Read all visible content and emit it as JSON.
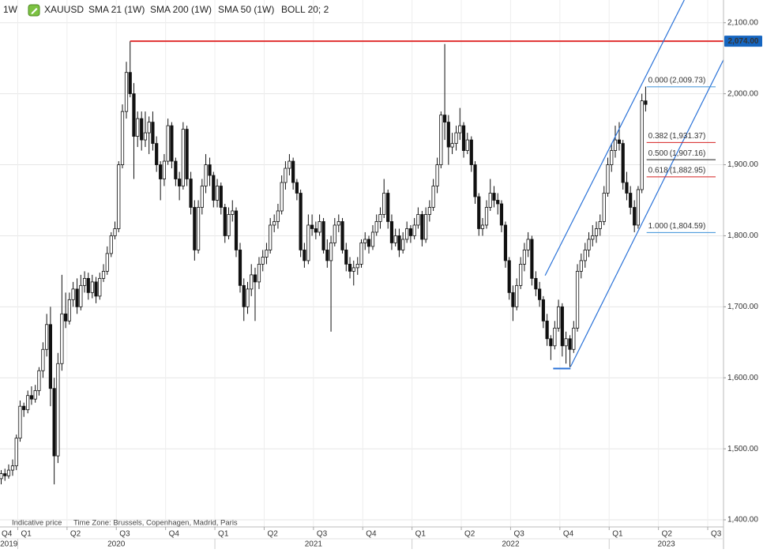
{
  "chart_data": {
    "type": "candlestick",
    "timeframe": "1W",
    "symbol": "XAUUSD",
    "indicators": [
      "SMA 21 (1W)",
      "SMA 200 (1W)",
      "SMA 50 (1W)",
      "BOLL 20; 2"
    ],
    "footer": [
      "Indicative price",
      "Time Zone: Brussels, Copenhagen, Madrid, Paris"
    ],
    "up_color": "#ffffff",
    "down_color": "#111111",
    "grid": true,
    "xlim": [
      2019.91,
      2023.58
    ],
    "ylim": [
      1390,
      2132
    ],
    "yticks": [
      {
        "value": 1400,
        "label": "1,400.00"
      },
      {
        "value": 1500,
        "label": "1,500.00"
      },
      {
        "value": 1600,
        "label": "1,600.00"
      },
      {
        "value": 1700,
        "label": "1,700.00"
      },
      {
        "value": 1800,
        "label": "1,800.00"
      },
      {
        "value": 1900,
        "label": "1,900.00"
      },
      {
        "value": 2000,
        "label": "2,000.00"
      },
      {
        "value": 2100,
        "label": "2,100.00"
      }
    ],
    "xticks": [
      {
        "value": 2019.75,
        "label": "Q4"
      },
      {
        "value": 2020,
        "label": "Q1"
      },
      {
        "value": 2020.25,
        "label": "Q2"
      },
      {
        "value": 2020.5,
        "label": "Q3"
      },
      {
        "value": 2020.75,
        "label": "Q4"
      },
      {
        "value": 2021,
        "label": "Q1"
      },
      {
        "value": 2021.25,
        "label": "Q2"
      },
      {
        "value": 2021.5,
        "label": "Q3"
      },
      {
        "value": 2021.75,
        "label": "Q4"
      },
      {
        "value": 2022,
        "label": "Q1"
      },
      {
        "value": 2022.25,
        "label": "Q2"
      },
      {
        "value": 2022.5,
        "label": "Q3"
      },
      {
        "value": 2022.75,
        "label": "Q4"
      },
      {
        "value": 2023,
        "label": "Q1"
      },
      {
        "value": 2023.25,
        "label": "Q2"
      },
      {
        "value": 2023.5,
        "label": "Q3"
      }
    ],
    "year_ticks": [
      {
        "value": 2019,
        "label": "2019"
      },
      {
        "value": 2020,
        "label": "2020"
      },
      {
        "value": 2021,
        "label": "2021"
      },
      {
        "value": 2022,
        "label": "2022"
      },
      {
        "value": 2023,
        "label": "2023"
      }
    ],
    "resistance": {
      "value": 2074,
      "label": "2,074.00",
      "x_start": 2020.57,
      "color": "#e03030",
      "label_color": "#1565c0"
    },
    "fib_x": [
      2023.19,
      2023.54
    ],
    "fib_levels": [
      {
        "ratio": "0.000",
        "value": 2009.73,
        "label": "(2,009.73)",
        "color": "#3a8fd8"
      },
      {
        "ratio": "0.382",
        "value": 1931.37,
        "label": "(1,931.37)",
        "color": "#d42020"
      },
      {
        "ratio": "0.500",
        "value": 1907.16,
        "label": "(1,907.16)",
        "color": "#222222"
      },
      {
        "ratio": "0.618",
        "value": 1882.95,
        "label": "(1,882.95)",
        "color": "#d42020"
      },
      {
        "ratio": "1.000",
        "value": 1804.59,
        "label": "(1,804.59)",
        "color": "#3a8fd8"
      }
    ],
    "trendlines": [
      {
        "x": [
          2022.675,
          2023.381
        ],
        "y": [
          1744,
          2132
        ],
        "color": "#2a72d8"
      },
      {
        "x": [
          2022.804,
          2023.582
        ],
        "y": [
          1615.5,
          2049
        ],
        "color": "#2a72d8"
      },
      {
        "x": [
          2022.716,
          2022.804
        ],
        "y": [
          1613,
          1613
        ],
        "color": "#2a72d8"
      }
    ],
    "x": [
      2019.916,
      2019.935,
      2019.954,
      2019.974,
      2019.993,
      2020.012,
      2020.031,
      2020.051,
      2020.07,
      2020.089,
      2020.108,
      2020.128,
      2020.147,
      2020.166,
      2020.185,
      2020.204,
      2020.224,
      2020.243,
      2020.262,
      2020.281,
      2020.301,
      2020.32,
      2020.339,
      2020.358,
      2020.378,
      2020.397,
      2020.416,
      2020.435,
      2020.454,
      2020.474,
      2020.493,
      2020.512,
      2020.531,
      2020.551,
      2020.57,
      2020.589,
      2020.608,
      2020.628,
      2020.647,
      2020.666,
      2020.685,
      2020.704,
      2020.724,
      2020.743,
      2020.762,
      2020.781,
      2020.801,
      2020.82,
      2020.839,
      2020.858,
      2020.878,
      2020.897,
      2020.916,
      2020.935,
      2020.954,
      2020.974,
      2020.993,
      2021.012,
      2021.031,
      2021.051,
      2021.07,
      2021.089,
      2021.108,
      2021.128,
      2021.147,
      2021.166,
      2021.185,
      2021.204,
      2021.224,
      2021.243,
      2021.262,
      2021.281,
      2021.301,
      2021.32,
      2021.339,
      2021.358,
      2021.378,
      2021.397,
      2021.416,
      2021.435,
      2021.454,
      2021.474,
      2021.493,
      2021.512,
      2021.531,
      2021.551,
      2021.57,
      2021.589,
      2021.608,
      2021.628,
      2021.647,
      2021.666,
      2021.685,
      2021.704,
      2021.724,
      2021.743,
      2021.762,
      2021.781,
      2021.801,
      2021.82,
      2021.839,
      2021.858,
      2021.878,
      2021.897,
      2021.916,
      2021.935,
      2021.954,
      2021.974,
      2021.993,
      2022.012,
      2022.031,
      2022.051,
      2022.07,
      2022.089,
      2022.108,
      2022.128,
      2022.147,
      2022.166,
      2022.185,
      2022.204,
      2022.224,
      2022.243,
      2022.262,
      2022.281,
      2022.301,
      2022.32,
      2022.339,
      2022.358,
      2022.378,
      2022.397,
      2022.416,
      2022.435,
      2022.454,
      2022.474,
      2022.493,
      2022.512,
      2022.531,
      2022.551,
      2022.57,
      2022.589,
      2022.608,
      2022.628,
      2022.647,
      2022.666,
      2022.685,
      2022.704,
      2022.724,
      2022.743,
      2022.762,
      2022.781,
      2022.801,
      2022.82,
      2022.839,
      2022.858,
      2022.878,
      2022.897,
      2022.916,
      2022.935,
      2022.954,
      2022.974,
      2022.993,
      2023.012,
      2023.031,
      2023.051,
      2023.07,
      2023.089,
      2023.108,
      2023.128,
      2023.147,
      2023.166,
      2023.185
    ],
    "ohlc": [
      [
        1458,
        1470,
        1450,
        1465
      ],
      [
        1465,
        1472,
        1455,
        1462
      ],
      [
        1462,
        1478,
        1458,
        1470
      ],
      [
        1470,
        1485,
        1462,
        1476
      ],
      [
        1476,
        1520,
        1470,
        1515
      ],
      [
        1515,
        1568,
        1510,
        1560
      ],
      [
        1560,
        1565,
        1545,
        1555
      ],
      [
        1555,
        1582,
        1550,
        1575
      ],
      [
        1575,
        1588,
        1562,
        1570
      ],
      [
        1570,
        1590,
        1565,
        1582
      ],
      [
        1582,
        1615,
        1575,
        1610
      ],
      [
        1610,
        1650,
        1600,
        1640
      ],
      [
        1640,
        1690,
        1630,
        1675
      ],
      [
        1675,
        1700,
        1560,
        1585
      ],
      [
        1585,
        1600,
        1450,
        1490
      ],
      [
        1490,
        1635,
        1480,
        1620
      ],
      [
        1620,
        1745,
        1610,
        1690
      ],
      [
        1690,
        1720,
        1670,
        1680
      ],
      [
        1680,
        1720,
        1675,
        1710
      ],
      [
        1710,
        1735,
        1700,
        1725
      ],
      [
        1725,
        1740,
        1690,
        1700
      ],
      [
        1700,
        1745,
        1695,
        1730
      ],
      [
        1730,
        1750,
        1720,
        1740
      ],
      [
        1740,
        1748,
        1710,
        1720
      ],
      [
        1720,
        1745,
        1712,
        1735
      ],
      [
        1735,
        1742,
        1705,
        1715
      ],
      [
        1715,
        1748,
        1710,
        1740
      ],
      [
        1740,
        1760,
        1735,
        1750
      ],
      [
        1750,
        1785,
        1745,
        1775
      ],
      [
        1775,
        1805,
        1770,
        1800
      ],
      [
        1800,
        1820,
        1795,
        1810
      ],
      [
        1810,
        1905,
        1805,
        1900
      ],
      [
        1900,
        1985,
        1895,
        1975
      ],
      [
        1975,
        2045,
        1965,
        2030
      ],
      [
        2030,
        2074,
        1995,
        2000
      ],
      [
        2000,
        2015,
        1880,
        1940
      ],
      [
        1940,
        1975,
        1925,
        1965
      ],
      [
        1965,
        1975,
        1920,
        1935
      ],
      [
        1935,
        1975,
        1925,
        1945
      ],
      [
        1945,
        1968,
        1915,
        1960
      ],
      [
        1960,
        1975,
        1920,
        1930
      ],
      [
        1930,
        1940,
        1890,
        1900
      ],
      [
        1900,
        1905,
        1850,
        1880
      ],
      [
        1880,
        1915,
        1870,
        1905
      ],
      [
        1905,
        1965,
        1900,
        1955
      ],
      [
        1955,
        1960,
        1895,
        1905
      ],
      [
        1905,
        1910,
        1870,
        1880
      ],
      [
        1880,
        1890,
        1850,
        1870
      ],
      [
        1870,
        1960,
        1865,
        1950
      ],
      [
        1950,
        1955,
        1870,
        1880
      ],
      [
        1880,
        1890,
        1830,
        1840
      ],
      [
        1840,
        1850,
        1765,
        1780
      ],
      [
        1780,
        1850,
        1775,
        1840
      ],
      [
        1840,
        1880,
        1830,
        1870
      ],
      [
        1870,
        1915,
        1860,
        1900
      ],
      [
        1900,
        1910,
        1870,
        1885
      ],
      [
        1885,
        1890,
        1840,
        1850
      ],
      [
        1850,
        1880,
        1840,
        1870
      ],
      [
        1870,
        1875,
        1830,
        1840
      ],
      [
        1840,
        1845,
        1790,
        1800
      ],
      [
        1800,
        1840,
        1795,
        1830
      ],
      [
        1830,
        1850,
        1820,
        1835
      ],
      [
        1835,
        1840,
        1770,
        1780
      ],
      [
        1780,
        1790,
        1720,
        1730
      ],
      [
        1730,
        1740,
        1680,
        1700
      ],
      [
        1700,
        1735,
        1690,
        1725
      ],
      [
        1725,
        1760,
        1715,
        1745
      ],
      [
        1745,
        1755,
        1680,
        1735
      ],
      [
        1735,
        1770,
        1725,
        1760
      ],
      [
        1760,
        1780,
        1750,
        1770
      ],
      [
        1770,
        1790,
        1760,
        1780
      ],
      [
        1780,
        1825,
        1775,
        1815
      ],
      [
        1815,
        1830,
        1805,
        1820
      ],
      [
        1820,
        1845,
        1810,
        1835
      ],
      [
        1835,
        1885,
        1830,
        1875
      ],
      [
        1875,
        1905,
        1865,
        1895
      ],
      [
        1895,
        1915,
        1885,
        1905
      ],
      [
        1905,
        1910,
        1865,
        1875
      ],
      [
        1875,
        1880,
        1850,
        1860
      ],
      [
        1860,
        1865,
        1770,
        1780
      ],
      [
        1780,
        1790,
        1755,
        1765
      ],
      [
        1765,
        1830,
        1760,
        1815
      ],
      [
        1815,
        1830,
        1800,
        1810
      ],
      [
        1810,
        1820,
        1795,
        1805
      ],
      [
        1805,
        1830,
        1800,
        1820
      ],
      [
        1820,
        1825,
        1775,
        1780
      ],
      [
        1780,
        1795,
        1755,
        1765
      ],
      [
        1765,
        1800,
        1665,
        1790
      ],
      [
        1790,
        1825,
        1785,
        1815
      ],
      [
        1815,
        1830,
        1805,
        1820
      ],
      [
        1820,
        1825,
        1775,
        1780
      ],
      [
        1780,
        1790,
        1750,
        1760
      ],
      [
        1760,
        1770,
        1740,
        1750
      ],
      [
        1750,
        1765,
        1730,
        1755
      ],
      [
        1755,
        1770,
        1745,
        1760
      ],
      [
        1760,
        1795,
        1755,
        1790
      ],
      [
        1790,
        1805,
        1780,
        1795
      ],
      [
        1795,
        1800,
        1775,
        1785
      ],
      [
        1785,
        1815,
        1780,
        1805
      ],
      [
        1805,
        1830,
        1800,
        1820
      ],
      [
        1820,
        1840,
        1810,
        1830
      ],
      [
        1830,
        1880,
        1825,
        1860
      ],
      [
        1860,
        1865,
        1810,
        1820
      ],
      [
        1820,
        1830,
        1780,
        1790
      ],
      [
        1790,
        1810,
        1785,
        1800
      ],
      [
        1800,
        1810,
        1770,
        1780
      ],
      [
        1780,
        1805,
        1775,
        1795
      ],
      [
        1795,
        1820,
        1790,
        1810
      ],
      [
        1810,
        1815,
        1790,
        1800
      ],
      [
        1800,
        1825,
        1795,
        1815
      ],
      [
        1815,
        1840,
        1810,
        1830
      ],
      [
        1830,
        1835,
        1785,
        1795
      ],
      [
        1795,
        1840,
        1790,
        1830
      ],
      [
        1830,
        1850,
        1820,
        1840
      ],
      [
        1840,
        1880,
        1835,
        1870
      ],
      [
        1870,
        1910,
        1860,
        1900
      ],
      [
        1900,
        1975,
        1895,
        1970
      ],
      [
        1970,
        2070,
        1935,
        1960
      ],
      [
        1960,
        1970,
        1900,
        1925
      ],
      [
        1925,
        1945,
        1915,
        1930
      ],
      [
        1930,
        1955,
        1920,
        1945
      ],
      [
        1945,
        1980,
        1935,
        1955
      ],
      [
        1955,
        1960,
        1910,
        1920
      ],
      [
        1920,
        1945,
        1915,
        1935
      ],
      [
        1935,
        1940,
        1890,
        1900
      ],
      [
        1900,
        1905,
        1845,
        1855
      ],
      [
        1855,
        1860,
        1800,
        1810
      ],
      [
        1810,
        1825,
        1800,
        1815
      ],
      [
        1815,
        1850,
        1810,
        1840
      ],
      [
        1840,
        1880,
        1835,
        1860
      ],
      [
        1860,
        1870,
        1840,
        1850
      ],
      [
        1850,
        1860,
        1830,
        1845
      ],
      [
        1845,
        1850,
        1805,
        1815
      ],
      [
        1815,
        1820,
        1755,
        1765
      ],
      [
        1765,
        1770,
        1710,
        1720
      ],
      [
        1720,
        1730,
        1680,
        1700
      ],
      [
        1700,
        1740,
        1695,
        1730
      ],
      [
        1730,
        1770,
        1725,
        1760
      ],
      [
        1760,
        1790,
        1750,
        1780
      ],
      [
        1780,
        1805,
        1770,
        1795
      ],
      [
        1795,
        1800,
        1730,
        1740
      ],
      [
        1740,
        1750,
        1715,
        1725
      ],
      [
        1725,
        1735,
        1700,
        1710
      ],
      [
        1710,
        1715,
        1670,
        1680
      ],
      [
        1680,
        1690,
        1645,
        1655
      ],
      [
        1655,
        1660,
        1625,
        1645
      ],
      [
        1645,
        1680,
        1640,
        1670
      ],
      [
        1670,
        1710,
        1665,
        1700
      ],
      [
        1700,
        1705,
        1630,
        1645
      ],
      [
        1645,
        1665,
        1620,
        1655
      ],
      [
        1655,
        1660,
        1615,
        1640
      ],
      [
        1640,
        1680,
        1635,
        1670
      ],
      [
        1670,
        1760,
        1665,
        1750
      ],
      [
        1750,
        1775,
        1740,
        1765
      ],
      [
        1765,
        1790,
        1755,
        1780
      ],
      [
        1780,
        1805,
        1770,
        1795
      ],
      [
        1795,
        1815,
        1785,
        1800
      ],
      [
        1800,
        1820,
        1790,
        1810
      ],
      [
        1810,
        1830,
        1800,
        1820
      ],
      [
        1820,
        1870,
        1815,
        1860
      ],
      [
        1860,
        1910,
        1855,
        1900
      ],
      [
        1900,
        1930,
        1890,
        1920
      ],
      [
        1920,
        1955,
        1910,
        1935
      ],
      [
        1935,
        1960,
        1920,
        1930
      ],
      [
        1930,
        1935,
        1865,
        1875
      ],
      [
        1875,
        1890,
        1850,
        1860
      ],
      [
        1860,
        1870,
        1830,
        1840
      ],
      [
        1840,
        1850,
        1805,
        1815
      ],
      [
        1815,
        1870,
        1810,
        1865
      ],
      [
        1865,
        2000,
        1860,
        1990
      ],
      [
        1990,
        2010,
        1975,
        1985
      ]
    ]
  }
}
